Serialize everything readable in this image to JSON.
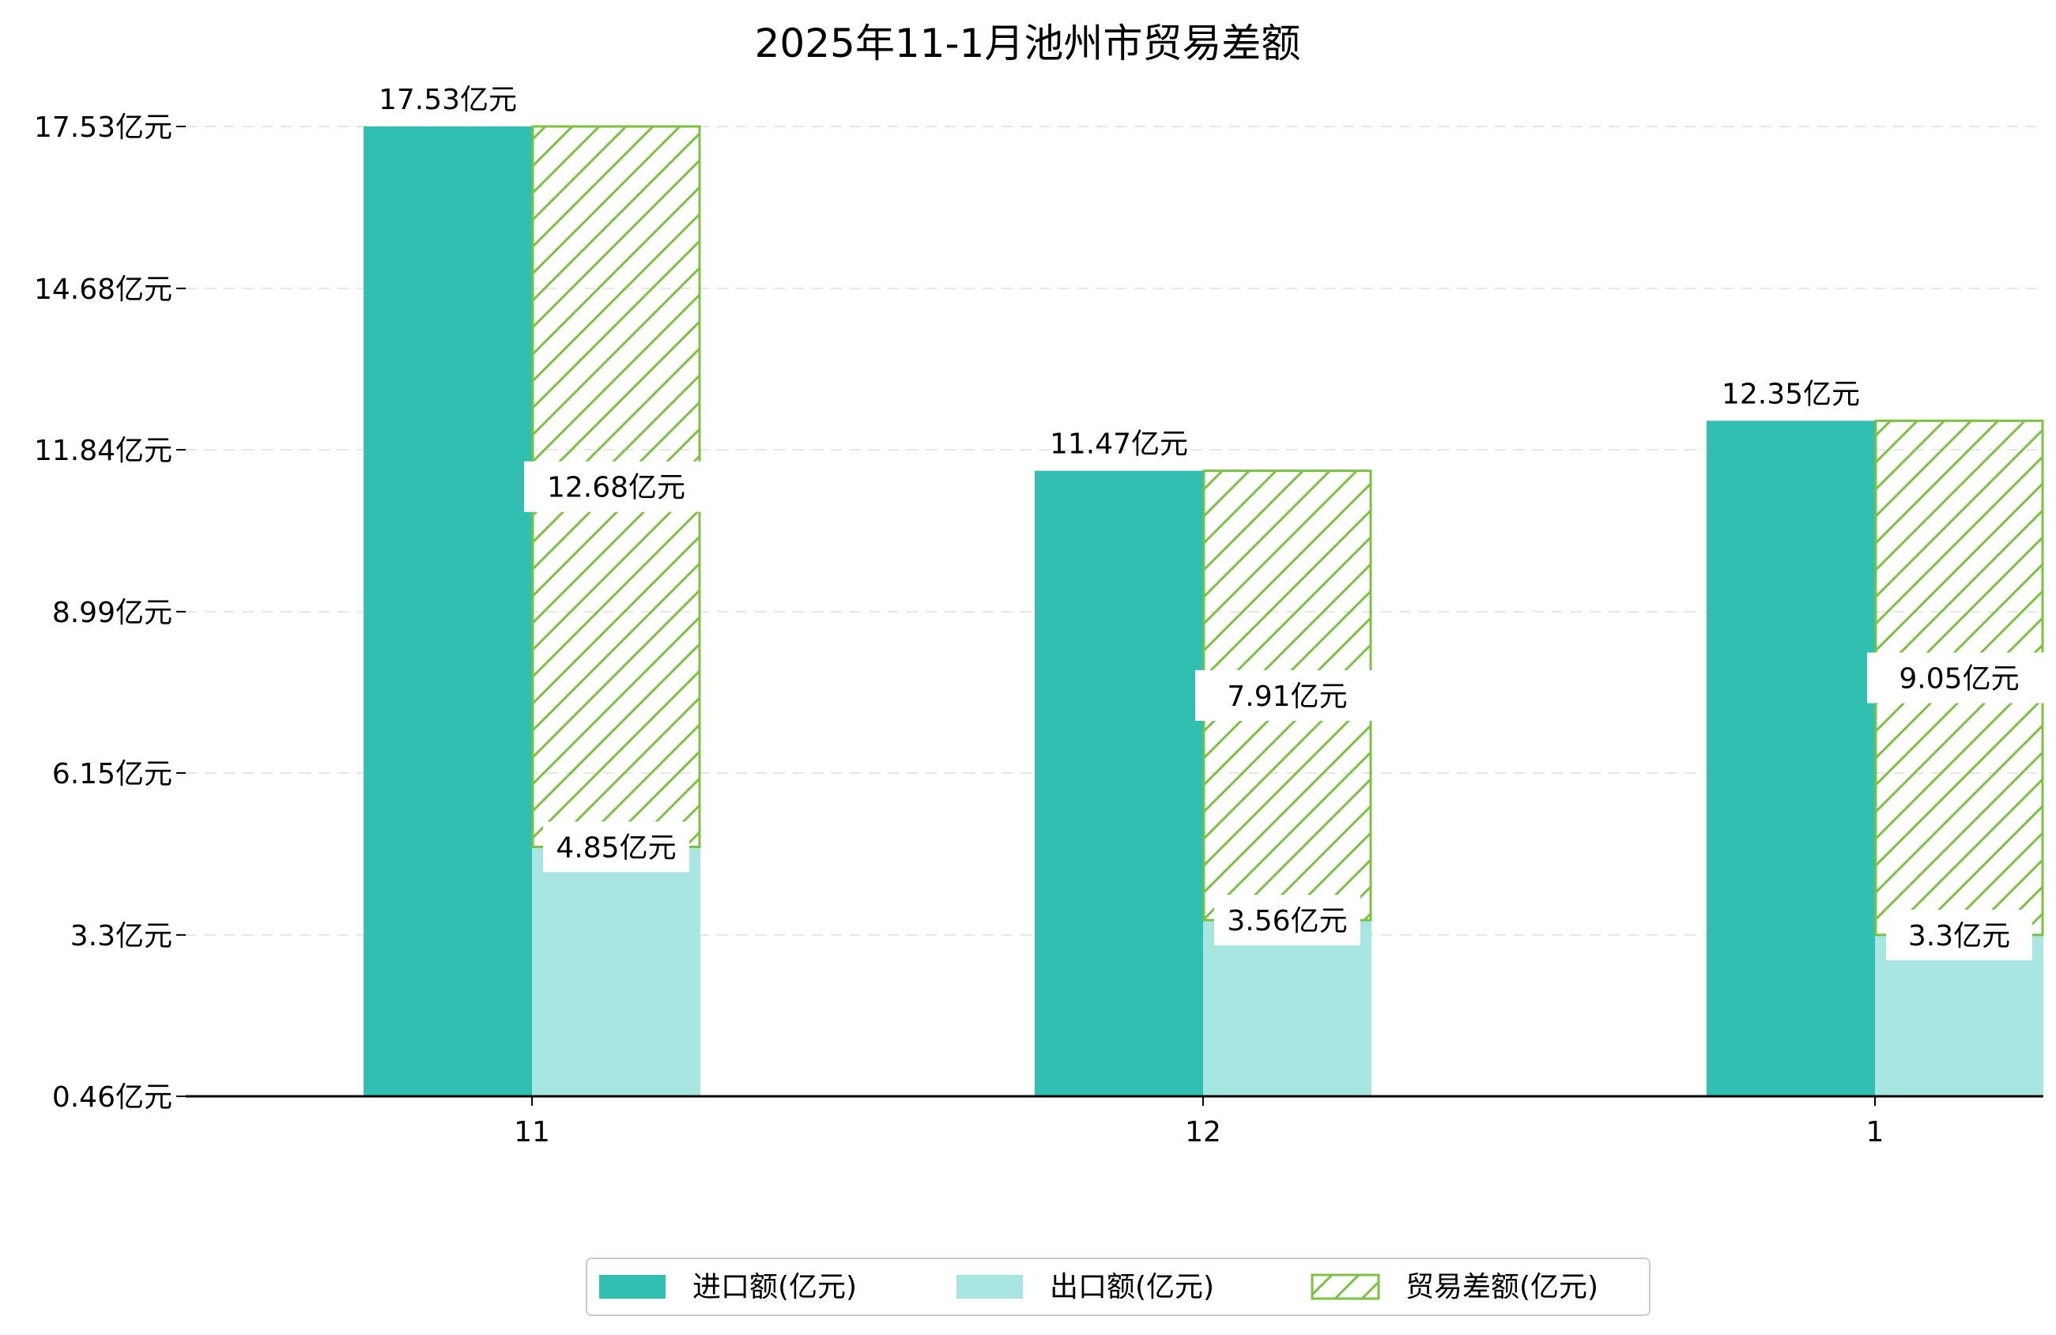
{
  "chart_data": {
    "type": "bar",
    "title": "2025年11-1月池州市贸易差额",
    "categories": [
      "11",
      "12",
      "1"
    ],
    "unit": "亿元",
    "series": [
      {
        "name": "进口额(亿元)",
        "values": [
          17.53,
          11.47,
          12.35
        ],
        "color": "#30bfb1"
      },
      {
        "name": "出口额(亿元)",
        "values": [
          4.85,
          3.56,
          3.3
        ],
        "color": "#a8e6e1"
      },
      {
        "name": "贸易差额(亿元)",
        "values": [
          12.68,
          7.91,
          9.05
        ],
        "color": "#7cc242",
        "pattern": "hatch"
      }
    ],
    "yticks": [
      "0.46亿元",
      "3.3亿元",
      "6.15亿元",
      "8.99亿元",
      "11.84亿元",
      "14.68亿元",
      "17.53亿元"
    ],
    "ytick_values": [
      0.46,
      3.3,
      6.15,
      8.99,
      11.84,
      14.68,
      17.53
    ],
    "ylim": [
      0.46,
      17.53
    ],
    "data_labels": {
      "import": [
        "17.53亿元",
        "11.47亿元",
        "12.35亿元"
      ],
      "export": [
        "4.85亿元",
        "3.56亿元",
        "3.3亿元"
      ],
      "balance": [
        "12.68亿元",
        "7.91亿元",
        "9.05亿元"
      ]
    },
    "grid": "horizontal-dashed",
    "legend_position": "bottom-center"
  }
}
